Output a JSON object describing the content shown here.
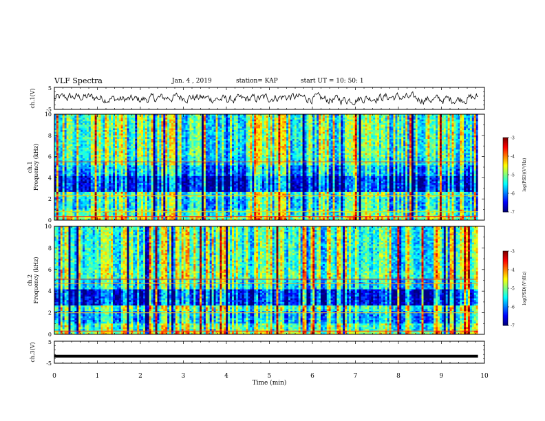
{
  "header": {
    "title": "VLF Spectra",
    "date": "Jan. 4 , 2019",
    "station": "station= KAP",
    "start": "start UT = 10: 50: 1"
  },
  "chart_data": [
    {
      "type": "line",
      "panel": "ch1-waveform",
      "ylabel": "ch.1(V)",
      "ylim": [
        -5,
        5
      ],
      "yticks": [
        "5",
        "-5"
      ],
      "x_range_min": [
        0,
        9.85
      ],
      "description_values": "dense noisy waveform fluctuating roughly between -2.5 and 2.5 V",
      "color": "#000000"
    },
    {
      "type": "heatmap",
      "panel": "ch1-spectrogram",
      "ylabel": "ch.1\nFrequency (kHz)",
      "ylim": [
        0,
        10
      ],
      "yticks": [
        "0",
        "2",
        "4",
        "6",
        "8",
        "10"
      ],
      "colorbar": {
        "label": "log(PSD)(V²/Hz)",
        "range": [
          -7,
          -3
        ],
        "ticks": [
          "-3",
          "-4",
          "-5",
          "-6",
          "-7"
        ]
      }
    },
    {
      "type": "heatmap",
      "panel": "ch2-spectrogram",
      "ylabel": "ch.2\nFrequency (kHz)",
      "ylim": [
        0,
        10
      ],
      "yticks": [
        "0",
        "2",
        "4",
        "6",
        "8",
        "10"
      ],
      "colorbar": {
        "label": "log(PSD)(V²/Hz)",
        "range": [
          -7,
          -3
        ],
        "ticks": [
          "-3",
          "-4",
          "-5",
          "-6",
          "-7"
        ]
      }
    },
    {
      "type": "line",
      "panel": "ch3-waveform",
      "ylabel": "ch.3(V)",
      "ylim": [
        -5,
        5
      ],
      "yticks": [
        "5",
        "-5"
      ],
      "x": [
        0,
        9.85
      ],
      "y": [
        -1.8,
        -1.8
      ],
      "color": "#000000"
    }
  ],
  "x_axis": {
    "label": "Time (min)",
    "ticks": [
      "0",
      "1",
      "2",
      "3",
      "4",
      "5",
      "6",
      "7",
      "8",
      "9",
      "10"
    ],
    "range": [
      0,
      10
    ]
  }
}
